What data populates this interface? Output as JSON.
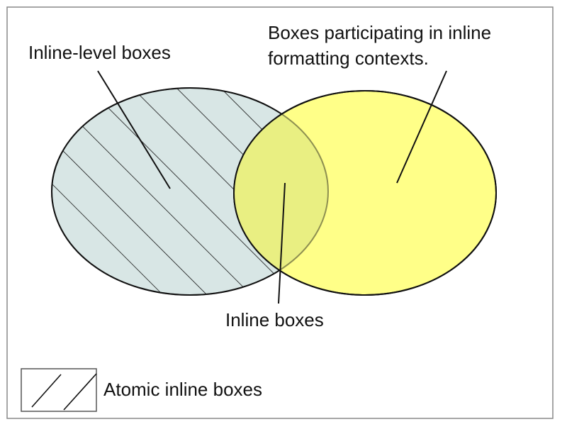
{
  "labels": {
    "inline_level_boxes": "Inline-level boxes",
    "boxes_participating_line1": "Boxes participating in inline",
    "boxes_participating_line2": "formatting contexts.",
    "inline_boxes": "Inline boxes",
    "legend_atomic": "Atomic inline boxes"
  },
  "colors": {
    "inline_level_fill": "#d8e6e5",
    "participating_fill": "#ffff88",
    "overlap_fill": "#e9ef82",
    "stroke": "#111111",
    "frame": "#888888"
  },
  "legend": {
    "pattern": "diagonal-hatch"
  }
}
